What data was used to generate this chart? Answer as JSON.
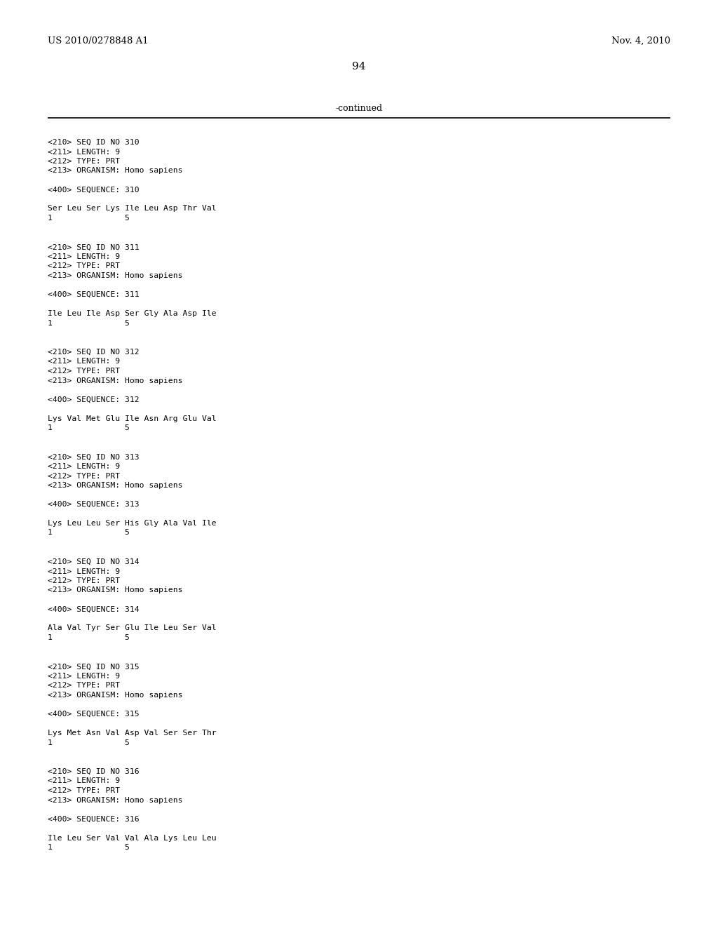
{
  "header_left": "US 2010/0278848 A1",
  "header_right": "Nov. 4, 2010",
  "page_number": "94",
  "continued_text": "-continued",
  "background_color": "#ffffff",
  "text_color": "#000000",
  "line_color": "#000000",
  "blocks": [
    {
      "meta": [
        "<210> SEQ ID NO 310",
        "<211> LENGTH: 9",
        "<212> TYPE: PRT",
        "<213> ORGANISM: Homo sapiens"
      ],
      "seq_label": "<400> SEQUENCE: 310",
      "seq_line": "Ser Leu Ser Lys Ile Leu Asp Thr Val",
      "num_line": "1               5"
    },
    {
      "meta": [
        "<210> SEQ ID NO 311",
        "<211> LENGTH: 9",
        "<212> TYPE: PRT",
        "<213> ORGANISM: Homo sapiens"
      ],
      "seq_label": "<400> SEQUENCE: 311",
      "seq_line": "Ile Leu Ile Asp Ser Gly Ala Asp Ile",
      "num_line": "1               5"
    },
    {
      "meta": [
        "<210> SEQ ID NO 312",
        "<211> LENGTH: 9",
        "<212> TYPE: PRT",
        "<213> ORGANISM: Homo sapiens"
      ],
      "seq_label": "<400> SEQUENCE: 312",
      "seq_line": "Lys Val Met Glu Ile Asn Arg Glu Val",
      "num_line": "1               5"
    },
    {
      "meta": [
        "<210> SEQ ID NO 313",
        "<211> LENGTH: 9",
        "<212> TYPE: PRT",
        "<213> ORGANISM: Homo sapiens"
      ],
      "seq_label": "<400> SEQUENCE: 313",
      "seq_line": "Lys Leu Leu Ser His Gly Ala Val Ile",
      "num_line": "1               5"
    },
    {
      "meta": [
        "<210> SEQ ID NO 314",
        "<211> LENGTH: 9",
        "<212> TYPE: PRT",
        "<213> ORGANISM: Homo sapiens"
      ],
      "seq_label": "<400> SEQUENCE: 314",
      "seq_line": "Ala Val Tyr Ser Glu Ile Leu Ser Val",
      "num_line": "1               5"
    },
    {
      "meta": [
        "<210> SEQ ID NO 315",
        "<211> LENGTH: 9",
        "<212> TYPE: PRT",
        "<213> ORGANISM: Homo sapiens"
      ],
      "seq_label": "<400> SEQUENCE: 315",
      "seq_line": "Lys Met Asn Val Asp Val Ser Ser Thr",
      "num_line": "1               5"
    },
    {
      "meta": [
        "<210> SEQ ID NO 316",
        "<211> LENGTH: 9",
        "<212> TYPE: PRT",
        "<213> ORGANISM: Homo sapiens"
      ],
      "seq_label": "<400> SEQUENCE: 316",
      "seq_line": "Ile Leu Ser Val Val Ala Lys Leu Leu",
      "num_line": "1               5"
    }
  ]
}
